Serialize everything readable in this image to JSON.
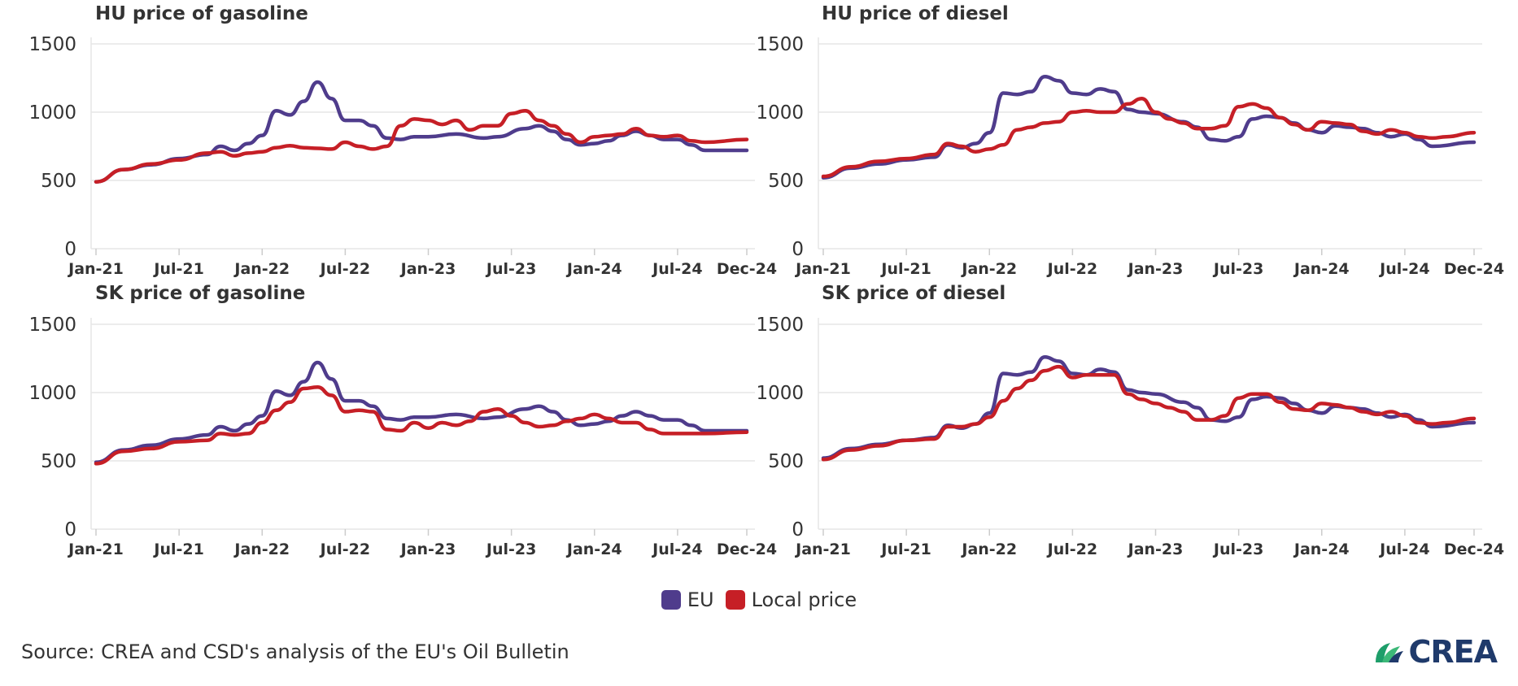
{
  "colors": {
    "eu": "#4f3c8c",
    "local": "#c61f26",
    "grid": "#e6e6e6",
    "axis_text": "#333333"
  },
  "legend": {
    "eu_label": "EU",
    "local_label": "Local price"
  },
  "source": "Source: CREA and CSD's analysis of the EU's Oil Bulletin",
  "logo": {
    "text": "CREA",
    "icon": "crea-leaf-logo"
  },
  "chart_data": [
    {
      "type": "line",
      "title": "HU price of gasoline",
      "x_ticks": [
        "Jan-21",
        "Jul-21",
        "Jan-22",
        "Jul-22",
        "Jan-23",
        "Jul-23",
        "Jan-24",
        "Jul-24",
        "Dec-24"
      ],
      "y_ticks": [
        0,
        500,
        1000,
        1500
      ],
      "ylim": [
        0,
        1500
      ],
      "xlim": [
        "2021-01",
        "2024-12"
      ],
      "series": [
        {
          "name": "EU",
          "x": [
            "2021-01",
            "2021-03",
            "2021-05",
            "2021-07",
            "2021-09",
            "2021-10",
            "2021-11",
            "2021-12",
            "2022-01",
            "2022-02",
            "2022-03",
            "2022-04",
            "2022-05",
            "2022-06",
            "2022-07",
            "2022-08",
            "2022-09",
            "2022-10",
            "2022-11",
            "2022-12",
            "2023-01",
            "2023-03",
            "2023-05",
            "2023-06",
            "2023-08",
            "2023-09",
            "2023-10",
            "2023-11",
            "2023-12",
            "2024-01",
            "2024-02",
            "2024-03",
            "2024-04",
            "2024-05",
            "2024-06",
            "2024-07",
            "2024-08",
            "2024-09",
            "2024-12"
          ],
          "y": [
            490,
            580,
            615,
            660,
            690,
            750,
            720,
            770,
            830,
            1010,
            980,
            1080,
            1220,
            1100,
            940,
            940,
            900,
            810,
            800,
            820,
            820,
            840,
            810,
            820,
            880,
            900,
            860,
            800,
            760,
            770,
            790,
            830,
            860,
            830,
            800,
            800,
            760,
            720,
            720
          ]
        },
        {
          "name": "Local price",
          "x": [
            "2021-01",
            "2021-03",
            "2021-05",
            "2021-07",
            "2021-09",
            "2021-10",
            "2021-11",
            "2021-12",
            "2022-01",
            "2022-02",
            "2022-03",
            "2022-04",
            "2022-05",
            "2022-06",
            "2022-07",
            "2022-08",
            "2022-09",
            "2022-10",
            "2022-11",
            "2022-12",
            "2023-01",
            "2023-02",
            "2023-03",
            "2023-04",
            "2023-05",
            "2023-06",
            "2023-07",
            "2023-08",
            "2023-09",
            "2023-10",
            "2023-11",
            "2023-12",
            "2024-01",
            "2024-02",
            "2024-03",
            "2024-04",
            "2024-05",
            "2024-06",
            "2024-07",
            "2024-08",
            "2024-09",
            "2024-12"
          ],
          "y": [
            490,
            580,
            620,
            650,
            700,
            710,
            680,
            700,
            710,
            740,
            755,
            740,
            735,
            730,
            780,
            750,
            730,
            750,
            900,
            950,
            940,
            910,
            940,
            870,
            900,
            900,
            990,
            1010,
            940,
            900,
            840,
            780,
            820,
            830,
            840,
            880,
            830,
            820,
            830,
            790,
            780,
            800
          ]
        }
      ]
    },
    {
      "type": "line",
      "title": "HU price of diesel",
      "x_ticks": [
        "Jan-21",
        "Jul-21",
        "Jan-22",
        "Jul-22",
        "Jan-23",
        "Jul-23",
        "Jan-24",
        "Jul-24",
        "Dec-24"
      ],
      "y_ticks": [
        0,
        500,
        1000,
        1500
      ],
      "ylim": [
        0,
        1500
      ],
      "xlim": [
        "2021-01",
        "2024-12"
      ],
      "series": [
        {
          "name": "EU",
          "x": [
            "2021-01",
            "2021-03",
            "2021-05",
            "2021-07",
            "2021-09",
            "2021-10",
            "2021-11",
            "2021-12",
            "2022-01",
            "2022-02",
            "2022-03",
            "2022-04",
            "2022-05",
            "2022-06",
            "2022-07",
            "2022-08",
            "2022-09",
            "2022-10",
            "2022-11",
            "2022-12",
            "2023-01",
            "2023-03",
            "2023-04",
            "2023-05",
            "2023-06",
            "2023-07",
            "2023-08",
            "2023-09",
            "2023-10",
            "2023-11",
            "2023-12",
            "2024-01",
            "2024-02",
            "2024-03",
            "2024-04",
            "2024-05",
            "2024-06",
            "2024-07",
            "2024-08",
            "2024-09",
            "2024-12"
          ],
          "y": [
            520,
            590,
            620,
            650,
            670,
            760,
            740,
            770,
            850,
            1140,
            1130,
            1150,
            1260,
            1230,
            1140,
            1130,
            1170,
            1150,
            1020,
            1000,
            990,
            930,
            890,
            800,
            790,
            820,
            950,
            970,
            960,
            920,
            870,
            850,
            900,
            890,
            880,
            850,
            820,
            840,
            800,
            750,
            780
          ]
        },
        {
          "name": "Local price",
          "x": [
            "2021-01",
            "2021-03",
            "2021-05",
            "2021-07",
            "2021-09",
            "2021-10",
            "2021-11",
            "2021-12",
            "2022-01",
            "2022-02",
            "2022-03",
            "2022-04",
            "2022-05",
            "2022-06",
            "2022-07",
            "2022-08",
            "2022-09",
            "2022-10",
            "2022-11",
            "2022-12",
            "2023-01",
            "2023-02",
            "2023-03",
            "2023-04",
            "2023-05",
            "2023-06",
            "2023-07",
            "2023-08",
            "2023-09",
            "2023-10",
            "2023-11",
            "2023-12",
            "2024-01",
            "2024-02",
            "2024-03",
            "2024-04",
            "2024-05",
            "2024-06",
            "2024-07",
            "2024-08",
            "2024-09",
            "2024-10",
            "2024-12"
          ],
          "y": [
            530,
            600,
            640,
            660,
            690,
            770,
            750,
            710,
            730,
            760,
            870,
            890,
            920,
            930,
            1000,
            1010,
            1000,
            1000,
            1060,
            1100,
            1000,
            950,
            920,
            880,
            880,
            900,
            1040,
            1060,
            1030,
            960,
            910,
            870,
            930,
            920,
            910,
            860,
            840,
            870,
            850,
            820,
            810,
            820,
            850
          ]
        }
      ]
    },
    {
      "type": "line",
      "title": "SK price of gasoline",
      "x_ticks": [
        "Jan-21",
        "Jul-21",
        "Jan-22",
        "Jul-22",
        "Jan-23",
        "Jul-23",
        "Jan-24",
        "Jul-24",
        "Dec-24"
      ],
      "y_ticks": [
        0,
        500,
        1000,
        1500
      ],
      "ylim": [
        0,
        1500
      ],
      "xlim": [
        "2021-01",
        "2024-12"
      ],
      "series": [
        {
          "name": "EU",
          "x": [
            "2021-01",
            "2021-03",
            "2021-05",
            "2021-07",
            "2021-09",
            "2021-10",
            "2021-11",
            "2021-12",
            "2022-01",
            "2022-02",
            "2022-03",
            "2022-04",
            "2022-05",
            "2022-06",
            "2022-07",
            "2022-08",
            "2022-09",
            "2022-10",
            "2022-11",
            "2022-12",
            "2023-01",
            "2023-03",
            "2023-05",
            "2023-06",
            "2023-08",
            "2023-09",
            "2023-10",
            "2023-11",
            "2023-12",
            "2024-01",
            "2024-02",
            "2024-03",
            "2024-04",
            "2024-05",
            "2024-06",
            "2024-07",
            "2024-08",
            "2024-09",
            "2024-12"
          ],
          "y": [
            490,
            580,
            615,
            660,
            690,
            750,
            720,
            770,
            830,
            1010,
            980,
            1080,
            1220,
            1100,
            940,
            940,
            900,
            810,
            800,
            820,
            820,
            840,
            810,
            820,
            880,
            900,
            860,
            800,
            760,
            770,
            790,
            830,
            860,
            830,
            800,
            800,
            760,
            720,
            720
          ]
        },
        {
          "name": "Local price",
          "x": [
            "2021-01",
            "2021-03",
            "2021-05",
            "2021-07",
            "2021-09",
            "2021-10",
            "2021-11",
            "2021-12",
            "2022-01",
            "2022-02",
            "2022-03",
            "2022-04",
            "2022-05",
            "2022-06",
            "2022-07",
            "2022-08",
            "2022-09",
            "2022-10",
            "2022-11",
            "2022-12",
            "2023-01",
            "2023-02",
            "2023-03",
            "2023-04",
            "2023-05",
            "2023-06",
            "2023-07",
            "2023-08",
            "2023-09",
            "2023-10",
            "2023-11",
            "2023-12",
            "2024-01",
            "2024-02",
            "2024-03",
            "2024-04",
            "2024-05",
            "2024-06",
            "2024-07",
            "2024-08",
            "2024-09",
            "2024-12"
          ],
          "y": [
            480,
            570,
            590,
            640,
            650,
            700,
            690,
            700,
            780,
            870,
            930,
            1030,
            1040,
            980,
            860,
            870,
            860,
            730,
            720,
            780,
            740,
            780,
            760,
            790,
            860,
            880,
            830,
            780,
            750,
            760,
            790,
            810,
            840,
            810,
            780,
            780,
            730,
            700,
            700,
            700,
            700,
            710
          ]
        }
      ]
    },
    {
      "type": "line",
      "title": "SK price of diesel",
      "x_ticks": [
        "Jan-21",
        "Jul-21",
        "Jan-22",
        "Jul-22",
        "Jan-23",
        "Jul-23",
        "Jan-24",
        "Jul-24",
        "Dec-24"
      ],
      "y_ticks": [
        0,
        500,
        1000,
        1500
      ],
      "ylim": [
        0,
        1500
      ],
      "xlim": [
        "2021-01",
        "2024-12"
      ],
      "series": [
        {
          "name": "EU",
          "x": [
            "2021-01",
            "2021-03",
            "2021-05",
            "2021-07",
            "2021-09",
            "2021-10",
            "2021-11",
            "2021-12",
            "2022-01",
            "2022-02",
            "2022-03",
            "2022-04",
            "2022-05",
            "2022-06",
            "2022-07",
            "2022-08",
            "2022-09",
            "2022-10",
            "2022-11",
            "2022-12",
            "2023-01",
            "2023-03",
            "2023-04",
            "2023-05",
            "2023-06",
            "2023-07",
            "2023-08",
            "2023-09",
            "2023-10",
            "2023-11",
            "2023-12",
            "2024-01",
            "2024-02",
            "2024-03",
            "2024-04",
            "2024-05",
            "2024-06",
            "2024-07",
            "2024-08",
            "2024-09",
            "2024-12"
          ],
          "y": [
            520,
            590,
            620,
            650,
            670,
            760,
            740,
            770,
            850,
            1140,
            1130,
            1150,
            1260,
            1230,
            1140,
            1130,
            1170,
            1150,
            1020,
            1000,
            990,
            930,
            890,
            800,
            790,
            820,
            950,
            970,
            960,
            920,
            870,
            850,
            900,
            890,
            880,
            850,
            820,
            840,
            800,
            750,
            780
          ]
        },
        {
          "name": "Local price",
          "x": [
            "2021-01",
            "2021-03",
            "2021-05",
            "2021-07",
            "2021-09",
            "2021-10",
            "2021-11",
            "2021-12",
            "2022-01",
            "2022-02",
            "2022-03",
            "2022-04",
            "2022-05",
            "2022-06",
            "2022-07",
            "2022-08",
            "2022-09",
            "2022-10",
            "2022-11",
            "2022-12",
            "2023-01",
            "2023-02",
            "2023-03",
            "2023-04",
            "2023-05",
            "2023-06",
            "2023-07",
            "2023-08",
            "2023-09",
            "2023-10",
            "2023-11",
            "2023-12",
            "2024-01",
            "2024-02",
            "2024-03",
            "2024-04",
            "2024-05",
            "2024-06",
            "2024-07",
            "2024-08",
            "2024-09",
            "2024-10",
            "2024-12"
          ],
          "y": [
            510,
            580,
            610,
            650,
            660,
            750,
            750,
            770,
            820,
            940,
            1030,
            1090,
            1160,
            1190,
            1110,
            1130,
            1130,
            1130,
            990,
            950,
            920,
            890,
            860,
            800,
            800,
            830,
            960,
            990,
            990,
            930,
            880,
            870,
            920,
            910,
            890,
            860,
            840,
            860,
            830,
            780,
            770,
            780,
            810
          ]
        }
      ]
    }
  ]
}
